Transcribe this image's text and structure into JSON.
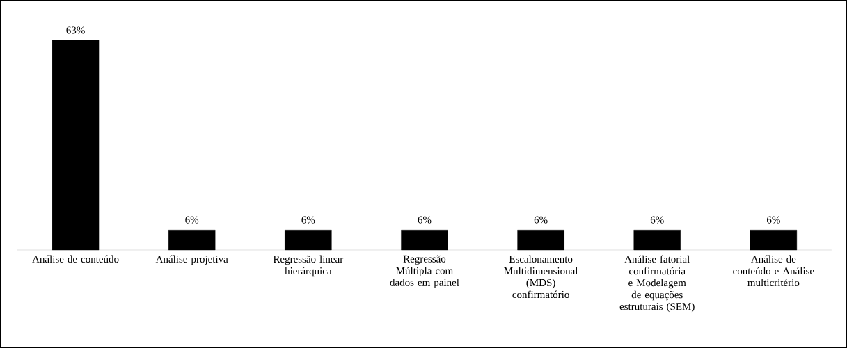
{
  "chart_data": {
    "type": "bar",
    "categories": [
      "Análise de conteúdo",
      "Análise projetiva",
      "Regressão linear hierárquica",
      "Regressão Múltipla com dados em painel",
      "Escalonamento Multidimensional (MDS) confirmatório",
      "Análise fatorial confirmatória e Modelagem de equações estruturais (SEM)",
      "Análise de conteúdo e Análise multicritério"
    ],
    "values": [
      63,
      6,
      6,
      6,
      6,
      6,
      6
    ],
    "value_labels": [
      "63%",
      "6%",
      "6%",
      "6%",
      "6%",
      "6%",
      "6%"
    ],
    "color": "#000000"
  }
}
